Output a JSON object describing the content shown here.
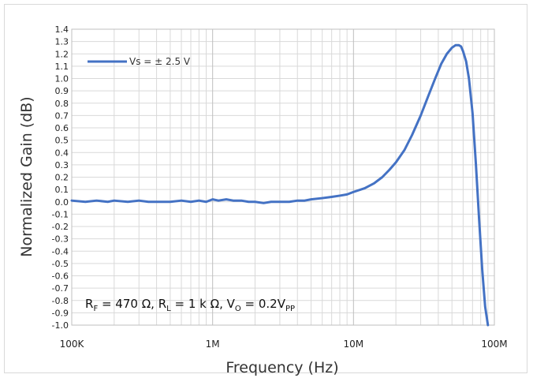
{
  "chart_data": {
    "type": "line",
    "xscale": "log",
    "xlabel": "Frequency (Hz)",
    "ylabel": "Normalized Gain (dB)",
    "xlim": [
      100000,
      100000000
    ],
    "ylim": [
      -1.0,
      1.4
    ],
    "xticks": [
      {
        "value": 100000,
        "label": "100K"
      },
      {
        "value": 1000000,
        "label": "1M"
      },
      {
        "value": 10000000,
        "label": "10M"
      },
      {
        "value": 100000000,
        "label": "100M"
      }
    ],
    "yticks": [
      "1.4",
      "1.3",
      "1.2",
      "1.1",
      "1.0",
      "0.9",
      "0.8",
      "0.7",
      "0.6",
      "0.5",
      "0.4",
      "0.3",
      "0.2",
      "0.1",
      "0.0",
      "-0.1",
      "-0.2",
      "-0.3",
      "-0.4",
      "-0.5",
      "-0.6",
      "-0.7",
      "-0.8",
      "-0.9",
      "-1.0"
    ],
    "grid": true,
    "legend_position": "top-left",
    "series": [
      {
        "name": "Vs = ± 2.5 V",
        "color": "#4472C4",
        "x": [
          100000,
          125000,
          150000,
          180000,
          200000,
          250000,
          300000,
          350000,
          400000,
          500000,
          600000,
          700000,
          800000,
          900000,
          1000000,
          1100000,
          1250000,
          1400000,
          1600000,
          1800000,
          2000000,
          2300000,
          2600000,
          3000000,
          3500000,
          4000000,
          4500000,
          5000000,
          6000000,
          7000000,
          8000000,
          9000000,
          10000000,
          12000000,
          14000000,
          16000000,
          18000000,
          20000000,
          23000000,
          26000000,
          30000000,
          34000000,
          38000000,
          42000000,
          46000000,
          50000000,
          53000000,
          56000000,
          58000000,
          60000000,
          63000000,
          66000000,
          70000000,
          74000000,
          78000000,
          82000000,
          86000000,
          90000000
        ],
        "y": [
          0.01,
          0.0,
          0.01,
          0.0,
          0.01,
          0.0,
          0.01,
          0.0,
          0.0,
          0.0,
          0.01,
          0.0,
          0.01,
          0.0,
          0.02,
          0.01,
          0.02,
          0.01,
          0.01,
          0.0,
          0.0,
          -0.01,
          0.0,
          0.0,
          0.0,
          0.01,
          0.01,
          0.02,
          0.03,
          0.04,
          0.05,
          0.06,
          0.08,
          0.11,
          0.15,
          0.2,
          0.26,
          0.32,
          0.42,
          0.54,
          0.7,
          0.86,
          1.0,
          1.12,
          1.2,
          1.25,
          1.27,
          1.27,
          1.26,
          1.22,
          1.14,
          1.0,
          0.72,
          0.3,
          -0.15,
          -0.55,
          -0.85,
          -1.0
        ]
      }
    ],
    "annotation": {
      "r_f_main": "R",
      "r_f_sub": "F",
      "r_f_rest": " = 470 Ω, ",
      "r_l_main": "R",
      "r_l_sub": "L",
      "r_l_rest": " = 1 k Ω, ",
      "v_o_main": "V",
      "v_o_sub": "O",
      "v_o_rest": " = 0.2V",
      "v_pp_sub": "PP"
    }
  }
}
